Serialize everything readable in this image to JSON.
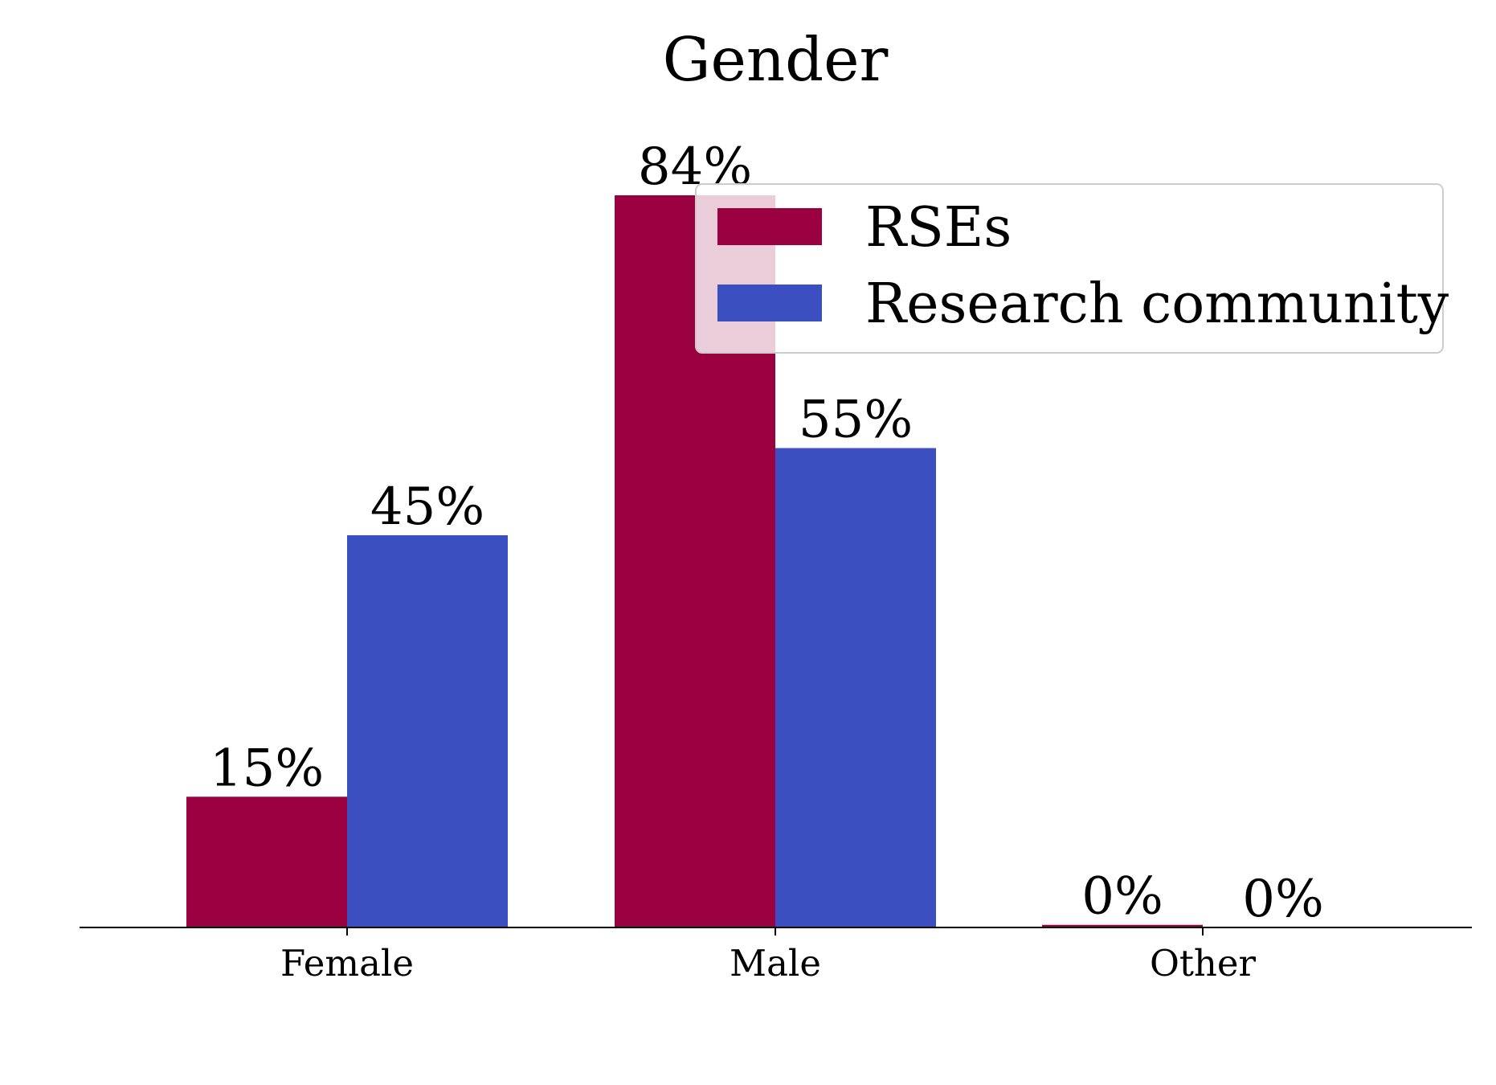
{
  "chart_data": {
    "type": "bar",
    "title": "Gender",
    "xlabel": "",
    "ylabel": "",
    "categories": [
      "Female",
      "Male",
      "Other"
    ],
    "series": [
      {
        "name": "RSEs",
        "values": [
          15,
          84,
          0.3
        ],
        "labels": [
          "15%",
          "84%",
          "0%"
        ],
        "color": "#9b0040"
      },
      {
        "name": "Research community",
        "values": [
          45,
          55,
          0
        ],
        "labels": [
          "45%",
          "55%",
          "0%"
        ],
        "color": "#3c4fc1"
      }
    ],
    "ylim": [
      0,
      100
    ],
    "grid": false,
    "legend_position": "top-right",
    "y_axis_visible": false
  }
}
